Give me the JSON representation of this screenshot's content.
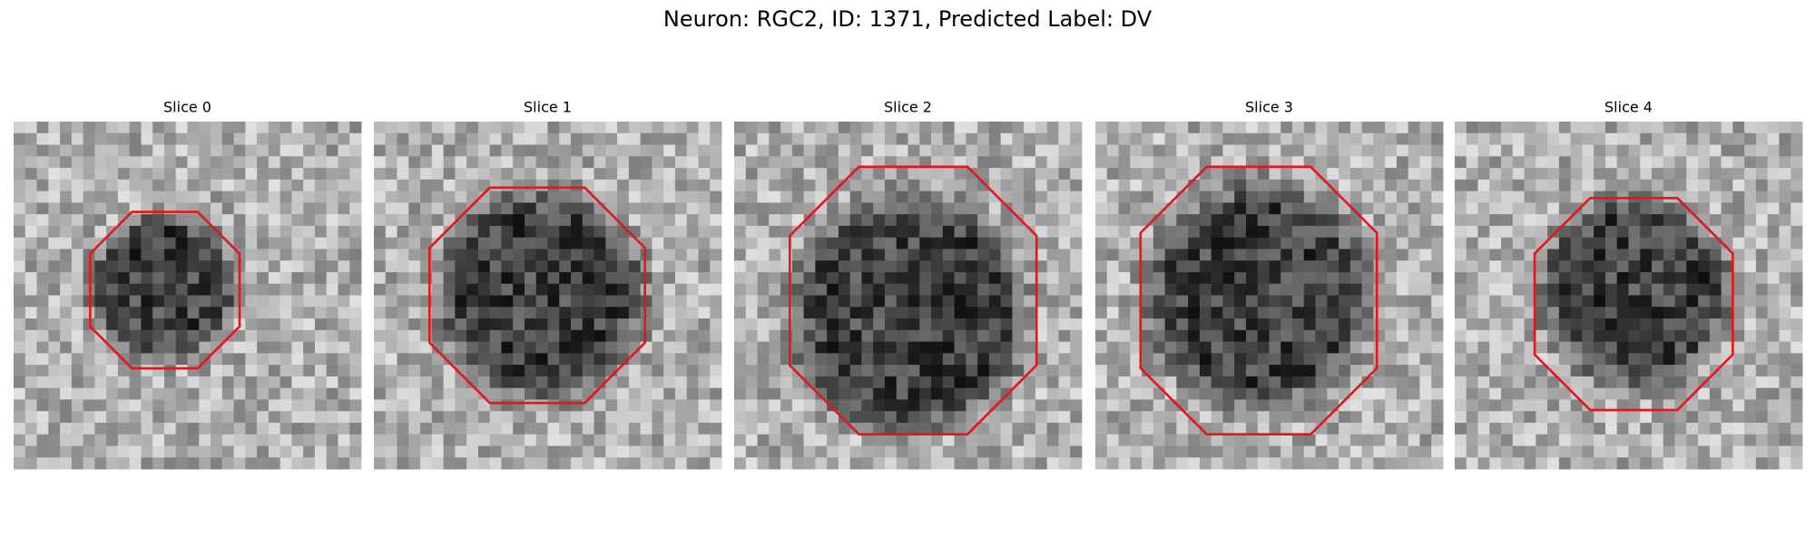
{
  "title": "Neuron: RGC2, ID: 1371, Predicted Label: DV",
  "panels": [
    {
      "title": "Slice 0"
    },
    {
      "title": "Slice 1"
    },
    {
      "title": "Slice 2"
    },
    {
      "title": "Slice 3"
    },
    {
      "title": "Slice 4"
    }
  ]
}
